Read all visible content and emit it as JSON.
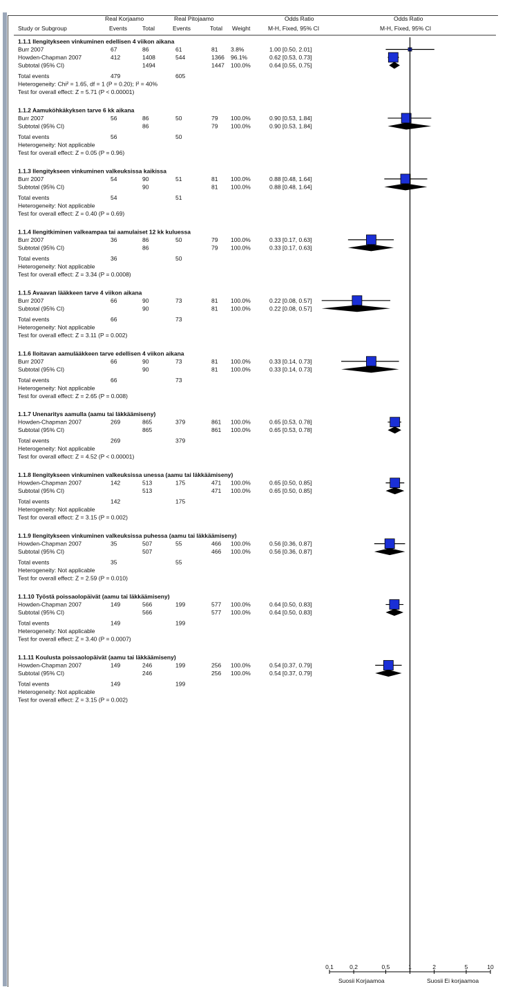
{
  "header": {
    "group1_label": "Real Korjaamo",
    "group2_label": "Real Pitojaamo",
    "or_left_title": "Odds Ratio",
    "or_right_title": "Odds Ratio",
    "col_study": "Study or Subgroup",
    "col_events1": "Events",
    "col_total1": "Total",
    "col_events2": "Events",
    "col_total2": "Total",
    "col_weight": "Weight",
    "col_method_left": "M-H, Fixed, 95% CI",
    "col_method_right": "M-H, Fixed, 95% CI"
  },
  "footer": {
    "favours_left": "Suosii Korjaamoa",
    "favours_right": "Suosii Ei korjaamoa"
  },
  "chart_data": {
    "type": "forest",
    "scale": "log",
    "xlim": [
      0.1,
      10
    ],
    "ticks": [
      0.1,
      0.2,
      0.5,
      1,
      2,
      5,
      10
    ],
    "tick_labels": [
      "0.1",
      "0.2",
      "0.5",
      "1",
      "2",
      "5",
      "10"
    ],
    "subgroups": [
      {
        "title": "1.1.1 Ilengitykseen vinkuminen edellisen 4 viikon aikana",
        "studies": [
          {
            "study": "Burr 2007",
            "events1": "67",
            "total1": "86",
            "events2": "61",
            "total2": "81",
            "weight": "3.8%",
            "or_text": "1.00 [0.50, 2.01]",
            "or": 1.0,
            "lo": 0.5,
            "hi": 2.01
          },
          {
            "study": "Howden-Chapman 2007",
            "events1": "412",
            "total1": "1408",
            "events2": "544",
            "total2": "1366",
            "weight": "96.1%",
            "or_text": "0.62 [0.53, 0.73]",
            "or": 0.62,
            "lo": 0.53,
            "hi": 0.73
          }
        ],
        "subtotal": {
          "label": "Subtotal (95% CI)",
          "total1": "1494",
          "total2": "1447",
          "weight": "100.0%",
          "or_text": "0.64 [0.55, 0.75]",
          "or": 0.64,
          "lo": 0.55,
          "hi": 0.75
        },
        "total_events": {
          "label": "Total events",
          "e1": "479",
          "e2": "605"
        },
        "heterogeneity": "Heterogeneity: Chi² = 1.65, df = 1 (P = 0.20); I² = 40%",
        "overall": "Test for overall effect: Z = 5.71 (P < 0.00001)"
      },
      {
        "title": "1.1.2 Aamuköhkäkyksen tarve 6 kk aikana",
        "studies": [
          {
            "study": "Burr 2007",
            "events1": "56",
            "total1": "86",
            "events2": "50",
            "total2": "79",
            "weight": "100.0%",
            "or_text": "0.90 [0.53, 1.84]",
            "or": 0.9,
            "lo": 0.53,
            "hi": 1.84
          }
        ],
        "subtotal": {
          "label": "Subtotal (95% CI)",
          "total1": "86",
          "total2": "79",
          "weight": "100.0%",
          "or_text": "0.90 [0.53, 1.84]",
          "or": 0.9,
          "lo": 0.53,
          "hi": 1.84
        },
        "total_events": {
          "label": "Total events",
          "e1": "56",
          "e2": "50"
        },
        "heterogeneity": "Heterogeneity: Not applicable",
        "overall": "Test for overall effect: Z = 0.05 (P = 0.96)"
      },
      {
        "title": "1.1.3 Ilengitykseen vinkuminen valkeuksissa kaikissa",
        "studies": [
          {
            "study": "Burr 2007",
            "events1": "54",
            "total1": "90",
            "events2": "51",
            "total2": "81",
            "weight": "100.0%",
            "or_text": "0.88 [0.48, 1.64]",
            "or": 0.88,
            "lo": 0.48,
            "hi": 1.64
          }
        ],
        "subtotal": {
          "label": "Subtotal (95% CI)",
          "total1": "90",
          "total2": "81",
          "weight": "100.0%",
          "or_text": "0.88 [0.48, 1.64]",
          "or": 0.88,
          "lo": 0.48,
          "hi": 1.64
        },
        "total_events": {
          "label": "Total events",
          "e1": "54",
          "e2": "51"
        },
        "heterogeneity": "Heterogeneity: Not applicable",
        "overall": "Test for overall effect: Z = 0.40 (P = 0.69)"
      },
      {
        "title": "1.1.4 Ilengitkiminen valkeampaa tai aamulaiset 12 kk kuluessa",
        "studies": [
          {
            "study": "Burr 2007",
            "events1": "36",
            "total1": "86",
            "events2": "50",
            "total2": "79",
            "weight": "100.0%",
            "or_text": "0.33 [0.17, 0.63]",
            "or": 0.33,
            "lo": 0.17,
            "hi": 0.63
          }
        ],
        "subtotal": {
          "label": "Subtotal (95% CI)",
          "total1": "86",
          "total2": "79",
          "weight": "100.0%",
          "or_text": "0.33 [0.17, 0.63]",
          "or": 0.33,
          "lo": 0.17,
          "hi": 0.63
        },
        "total_events": {
          "label": "Total events",
          "e1": "36",
          "e2": "50"
        },
        "heterogeneity": "Heterogeneity: Not applicable",
        "overall": "Test for overall effect: Z = 3.34 (P = 0.0008)"
      },
      {
        "title": "1.1.5 Avaavan lääkkeen tarve 4 viikon aikana",
        "studies": [
          {
            "study": "Burr 2007",
            "events1": "66",
            "total1": "90",
            "events2": "73",
            "total2": "81",
            "weight": "100.0%",
            "or_text": "0.22 [0.08, 0.57]",
            "or": 0.22,
            "lo": 0.08,
            "hi": 0.57
          }
        ],
        "subtotal": {
          "label": "Subtotal (95% CI)",
          "total1": "90",
          "total2": "81",
          "weight": "100.0%",
          "or_text": "0.22 [0.08, 0.57]",
          "or": 0.22,
          "lo": 0.08,
          "hi": 0.57
        },
        "total_events": {
          "label": "Total events",
          "e1": "66",
          "e2": "73"
        },
        "heterogeneity": "Heterogeneity: Not applicable",
        "overall": "Test for overall effect: Z = 3.11 (P = 0.002)"
      },
      {
        "title": "1.1.6 Iloitavan aamulääkkeen tarve edellisen 4 viikon aikana",
        "studies": [
          {
            "study": "Burr 2007",
            "events1": "66",
            "total1": "90",
            "events2": "73",
            "total2": "81",
            "weight": "100.0%",
            "or_text": "0.33 [0.14, 0.73]",
            "or": 0.33,
            "lo": 0.14,
            "hi": 0.73
          }
        ],
        "subtotal": {
          "label": "Subtotal (95% CI)",
          "total1": "90",
          "total2": "81",
          "weight": "100.0%",
          "or_text": "0.33 [0.14, 0.73]",
          "or": 0.33,
          "lo": 0.14,
          "hi": 0.73
        },
        "total_events": {
          "label": "Total events",
          "e1": "66",
          "e2": "73"
        },
        "heterogeneity": "Heterogeneity: Not applicable",
        "overall": "Test for overall effect: Z = 2.65 (P = 0.008)"
      },
      {
        "title": "1.1.7 Unenaritys aamulla (aamu tai läkkäämiseny)",
        "studies": [
          {
            "study": "Howden-Chapman 2007",
            "events1": "269",
            "total1": "865",
            "events2": "379",
            "total2": "861",
            "weight": "100.0%",
            "or_text": "0.65 [0.53, 0.78]",
            "or": 0.65,
            "lo": 0.53,
            "hi": 0.78
          }
        ],
        "subtotal": {
          "label": "Subtotal (95% CI)",
          "total1": "865",
          "total2": "861",
          "weight": "100.0%",
          "or_text": "0.65 [0.53, 0.78]",
          "or": 0.65,
          "lo": 0.53,
          "hi": 0.78
        },
        "total_events": {
          "label": "Total events",
          "e1": "269",
          "e2": "379"
        },
        "heterogeneity": "Heterogeneity: Not applicable",
        "overall": "Test for overall effect: Z = 4.52 (P < 0.00001)"
      },
      {
        "title": "1.1.8 Ilengitykseen vinkuminen valkeuksissa unessa (aamu tai läkkäämiseny)",
        "studies": [
          {
            "study": "Howden-Chapman 2007",
            "events1": "142",
            "total1": "513",
            "events2": "175",
            "total2": "471",
            "weight": "100.0%",
            "or_text": "0.65 [0.50, 0.85]",
            "or": 0.65,
            "lo": 0.5,
            "hi": 0.85
          }
        ],
        "subtotal": {
          "label": "Subtotal (95% CI)",
          "total1": "513",
          "total2": "471",
          "weight": "100.0%",
          "or_text": "0.65 [0.50, 0.85]",
          "or": 0.65,
          "lo": 0.5,
          "hi": 0.85
        },
        "total_events": {
          "label": "Total events",
          "e1": "142",
          "e2": "175"
        },
        "heterogeneity": "Heterogeneity: Not applicable",
        "overall": "Test for overall effect: Z = 3.15 (P = 0.002)"
      },
      {
        "title": "1.1.9 Ilengitykseen vinkuminen valkeuksissa puhessa (aamu tai läkkäämiseny)",
        "studies": [
          {
            "study": "Howden-Chapman 2007",
            "events1": "35",
            "total1": "507",
            "events2": "55",
            "total2": "466",
            "weight": "100.0%",
            "or_text": "0.56 [0.36, 0.87]",
            "or": 0.56,
            "lo": 0.36,
            "hi": 0.87
          }
        ],
        "subtotal": {
          "label": "Subtotal (95% CI)",
          "total1": "507",
          "total2": "466",
          "weight": "100.0%",
          "or_text": "0.56 [0.36, 0.87]",
          "or": 0.56,
          "lo": 0.36,
          "hi": 0.87
        },
        "total_events": {
          "label": "Total events",
          "e1": "35",
          "e2": "55"
        },
        "heterogeneity": "Heterogeneity: Not applicable",
        "overall": "Test for overall effect: Z = 2.59 (P = 0.010)"
      },
      {
        "title": "1.1.10 Työstä poissaolopäivät (aamu tai läkkäämiseny)",
        "studies": [
          {
            "study": "Howden-Chapman 2007",
            "events1": "149",
            "total1": "566",
            "events2": "199",
            "total2": "577",
            "weight": "100.0%",
            "or_text": "0.64 [0.50, 0.83]",
            "or": 0.64,
            "lo": 0.5,
            "hi": 0.83
          }
        ],
        "subtotal": {
          "label": "Subtotal (95% CI)",
          "total1": "566",
          "total2": "577",
          "weight": "100.0%",
          "or_text": "0.64 [0.50, 0.83]",
          "or": 0.64,
          "lo": 0.5,
          "hi": 0.83
        },
        "total_events": {
          "label": "Total events",
          "e1": "149",
          "e2": "199"
        },
        "heterogeneity": "Heterogeneity: Not applicable",
        "overall": "Test for overall effect: Z = 3.40 (P = 0.0007)"
      },
      {
        "title": "1.1.11 Koulusta poissaolopäivät (aamu tai läkkäämiseny)",
        "studies": [
          {
            "study": "Howden-Chapman 2007",
            "events1": "149",
            "total1": "246",
            "events2": "199",
            "total2": "256",
            "weight": "100.0%",
            "or_text": "0.54 [0.37, 0.79]",
            "or": 0.54,
            "lo": 0.37,
            "hi": 0.79
          }
        ],
        "subtotal": {
          "label": "Subtotal (95% CI)",
          "total1": "246",
          "total2": "256",
          "weight": "100.0%",
          "or_text": "0.54 [0.37, 0.79]",
          "or": 0.54,
          "lo": 0.37,
          "hi": 0.79
        },
        "total_events": {
          "label": "Total events",
          "e1": "149",
          "e2": "199"
        },
        "heterogeneity": "Heterogeneity: Not applicable",
        "overall": "Test for overall effect: Z = 3.15 (P = 0.002)"
      }
    ]
  }
}
